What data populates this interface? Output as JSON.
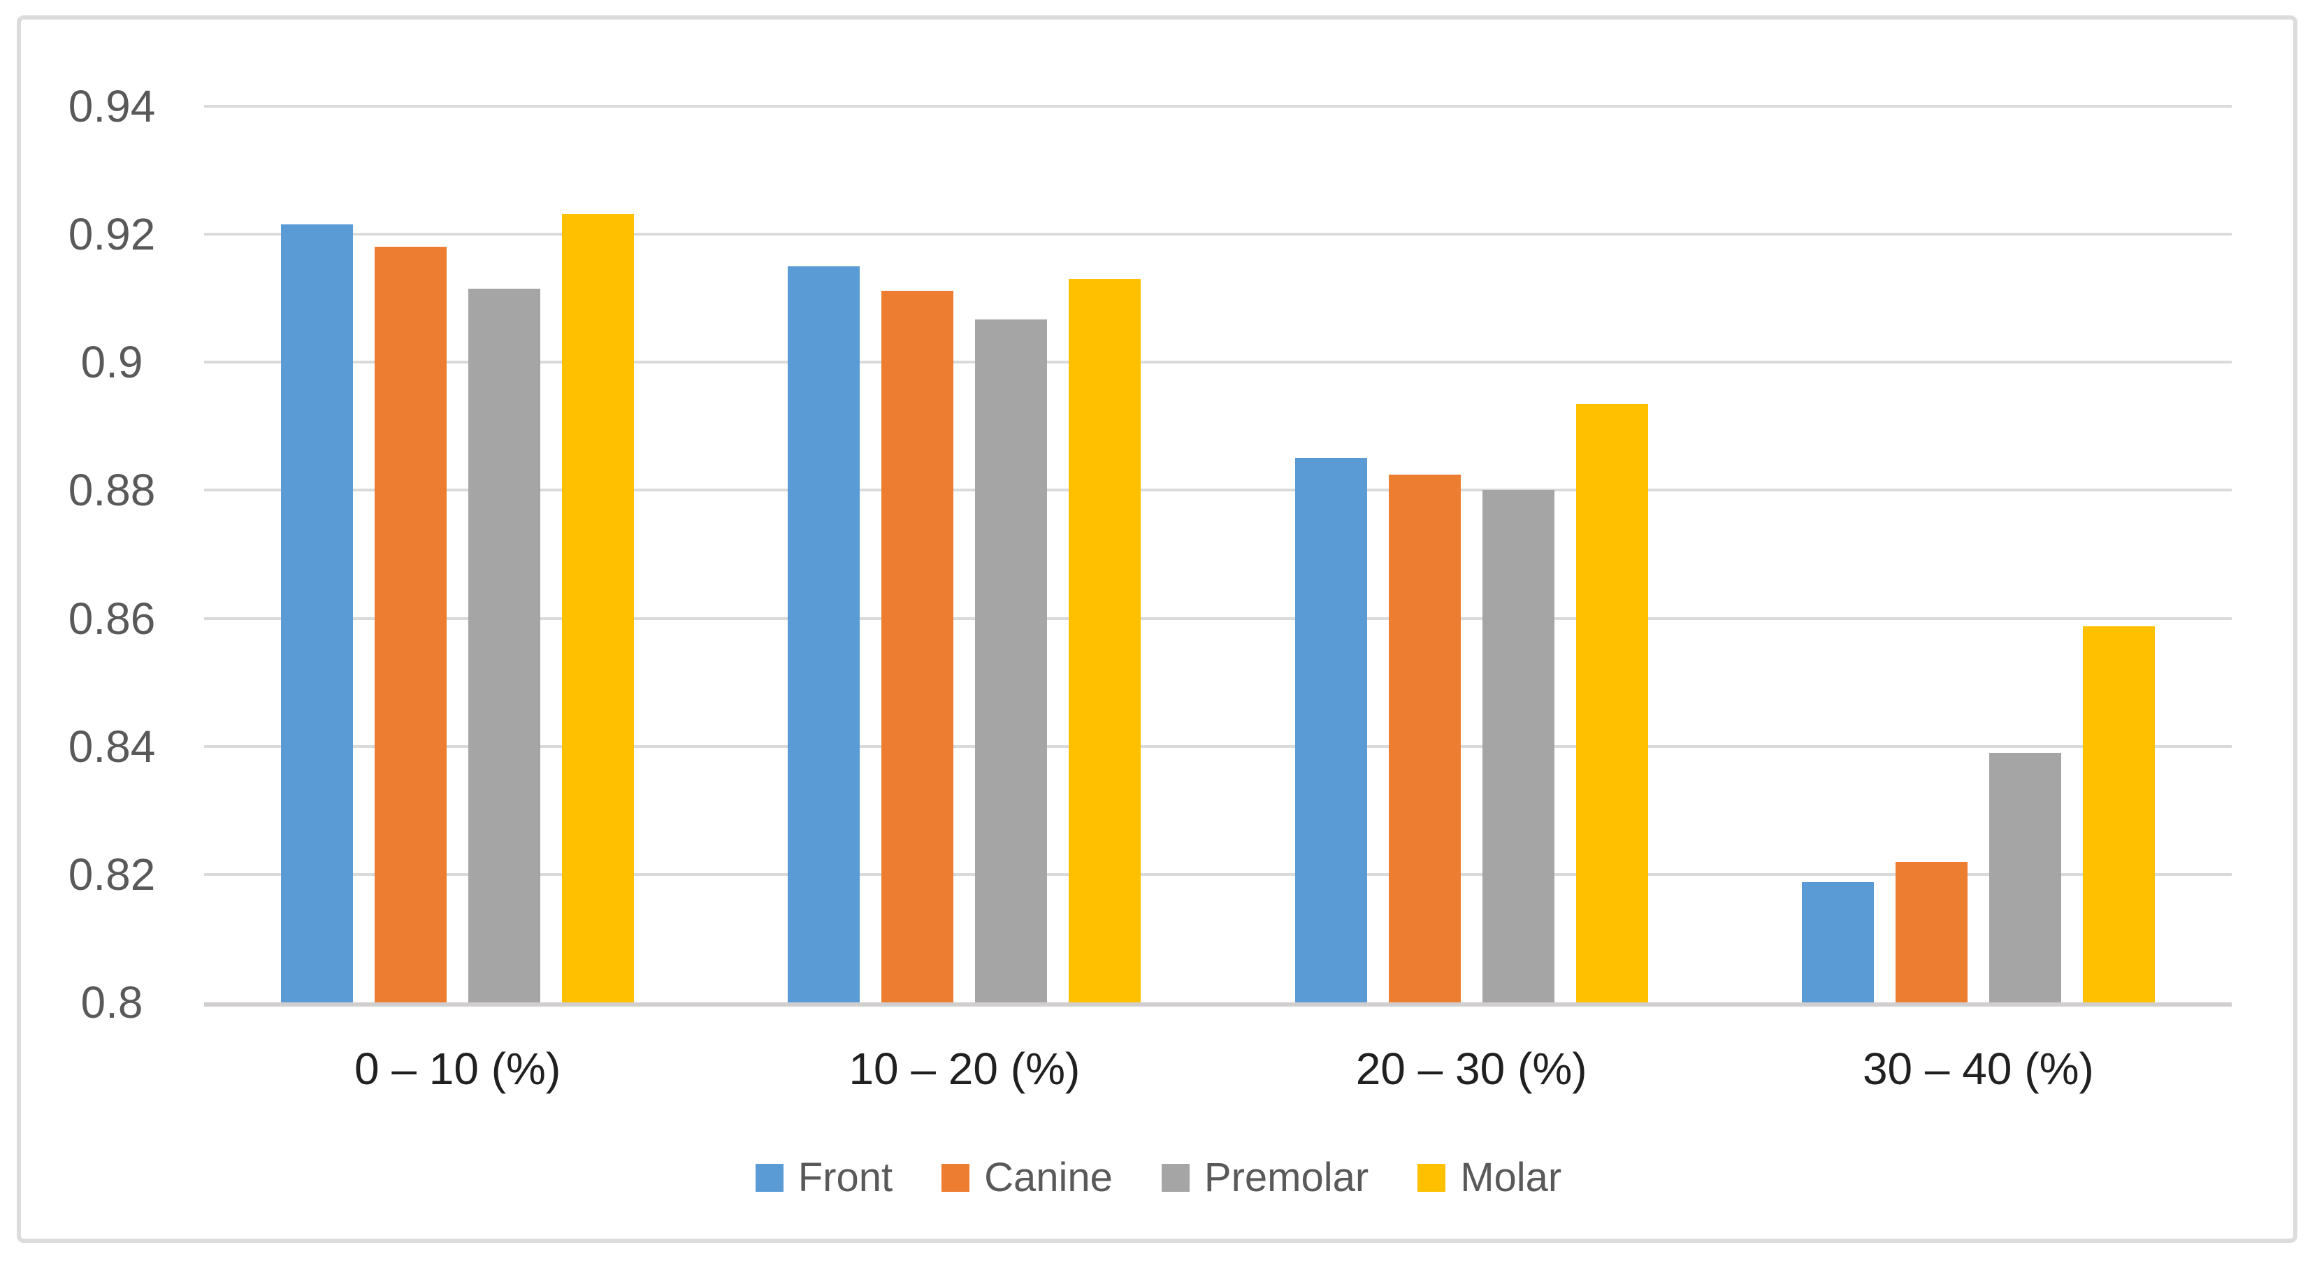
{
  "figure": {
    "background": "#FFFFFF",
    "border_color": "#DCDCDC"
  },
  "chart_data": {
    "type": "bar",
    "title": "",
    "xlabel": "",
    "ylabel": "",
    "categories": [
      "0 – 10 (%)",
      "10 – 20 (%)",
      "20 – 30 (%)",
      "30 – 40 (%)"
    ],
    "series": [
      {
        "name": "Front",
        "color": "#5B9BD5",
        "values": [
          0.9215,
          0.915,
          0.8851,
          0.8188
        ]
      },
      {
        "name": "Canine",
        "color": "#ED7D31",
        "values": [
          0.918,
          0.9112,
          0.8825,
          0.822
        ]
      },
      {
        "name": "Premolar",
        "color": "#A5A5A5",
        "values": [
          0.9115,
          0.9067,
          0.88,
          0.839
        ]
      },
      {
        "name": "Molar",
        "color": "#FFC000",
        "values": [
          0.9232,
          0.913,
          0.8935,
          0.8588
        ]
      }
    ],
    "ylim": [
      0.8,
      0.94
    ],
    "ytick_step": 0.02,
    "ytick_labels": [
      "0.8",
      "0.82",
      "0.84",
      "0.86",
      "0.88",
      "0.9",
      "0.92",
      "0.94"
    ],
    "grid": true,
    "gridline_color": "#DADADA",
    "axisline_color": "#D0CECE",
    "tick_label_color": "#595959",
    "category_label_color": "#202020",
    "legend_text_color": "#595959",
    "legend_position": "bottom"
  }
}
